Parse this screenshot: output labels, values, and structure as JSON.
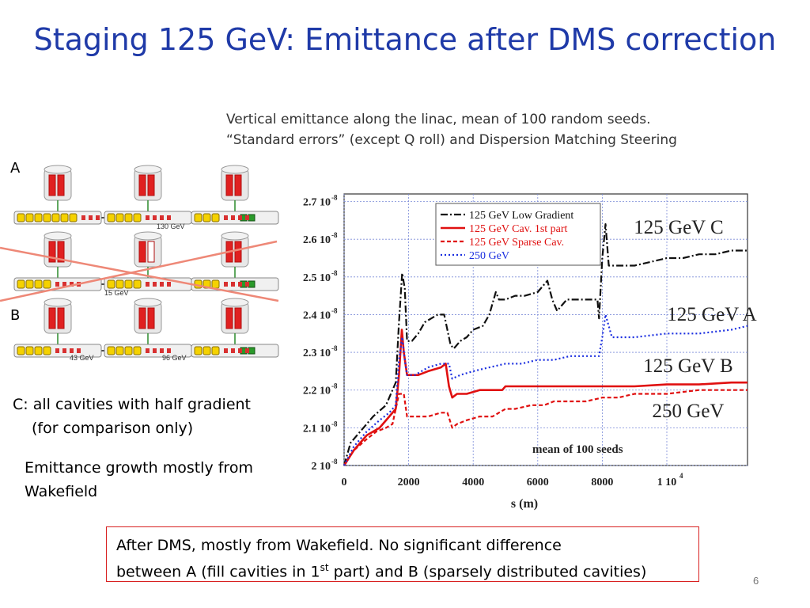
{
  "slide": {
    "title": "Staging 125 GeV: Emittance after DMS correction",
    "caption_line1": "Vertical emittance along the linac, mean of 100 random seeds.",
    "caption_line2": "“Standard errors” (except Q roll) and  Dispersion Matching Steering",
    "label_a": "A",
    "label_b": "B",
    "note_c_line1": "C: all cavities with half gradient",
    "note_c_line2": "(for comparison only)",
    "note_growth_line1": "Emittance growth mostly from",
    "note_growth_line2": "Wakefield",
    "box_text_1": "After DMS, mostly from Wakefield. No significant difference",
    "box_text_2a": "between A (fill cavities in 1",
    "box_text_sup": "st",
    "box_text_2b": " part) and B (sparsely distributed cavities)",
    "page_number": "6"
  },
  "diagram": {
    "row1_label": "130 GeV",
    "row2_label": "15 GeV",
    "row3_label_left": "43 GeV",
    "row3_label_right": "96 GeV"
  },
  "colors": {
    "title": "#1f3aa8",
    "series_low_gradient": "#111111",
    "series_cav_1st": "#e01010",
    "series_sparse": "#e01010",
    "series_250": "#1a2ee0",
    "cross": "#ee8877"
  },
  "chart_data": {
    "type": "line",
    "xlabel": "s (m)",
    "ylabel": "",
    "xlim": [
      0,
      12500
    ],
    "ylim": [
      2.0,
      2.72
    ],
    "xticks": [
      0,
      2000,
      4000,
      6000,
      8000,
      10000
    ],
    "xtick_labels": [
      "0",
      "2000",
      "4000",
      "6000",
      "8000",
      "1 10"
    ],
    "xtick_last_exp": "4",
    "yticks": [
      2.0,
      2.1,
      2.2,
      2.3,
      2.4,
      2.5,
      2.6,
      2.7
    ],
    "ytick_labels": [
      "2 10",
      "2.1 10",
      "2.2 10",
      "2.3 10",
      "2.4 10",
      "2.5 10",
      "2.6 10",
      "2.7 10"
    ],
    "ytick_exp": "-8",
    "grid": true,
    "legend_position": "top-left",
    "annotation": "mean of 100 seeds",
    "series": [
      {
        "name": "125 GeV Low Gradient",
        "label": "125 GeV C",
        "style": "dashdot",
        "x": [
          0,
          200,
          500,
          900,
          1300,
          1600,
          1700,
          1800,
          1880,
          1950,
          2100,
          2300,
          2500,
          2700,
          2900,
          3100,
          3300,
          3400,
          3600,
          3800,
          4000,
          4300,
          4500,
          4700,
          4800,
          5000,
          5300,
          5600,
          6000,
          6300,
          6450,
          6600,
          6900,
          7200,
          7500,
          7850,
          7900,
          8000,
          8100,
          8200,
          8500,
          9000,
          9500,
          10000,
          10500,
          11000,
          11500,
          12000,
          12500
        ],
        "y": [
          2.0,
          2.06,
          2.09,
          2.13,
          2.16,
          2.22,
          2.38,
          2.51,
          2.47,
          2.33,
          2.33,
          2.35,
          2.38,
          2.39,
          2.4,
          2.4,
          2.32,
          2.31,
          2.33,
          2.34,
          2.36,
          2.37,
          2.4,
          2.46,
          2.44,
          2.44,
          2.45,
          2.45,
          2.46,
          2.49,
          2.44,
          2.41,
          2.44,
          2.44,
          2.44,
          2.44,
          2.39,
          2.55,
          2.64,
          2.53,
          2.53,
          2.53,
          2.54,
          2.55,
          2.55,
          2.56,
          2.56,
          2.57,
          2.57
        ]
      },
      {
        "name": "125 GeV Cav. 1st part",
        "label": "125 GeV A",
        "style": "solid",
        "x": [
          0,
          300,
          700,
          1100,
          1400,
          1600,
          1700,
          1790,
          1850,
          1950,
          2100,
          2300,
          2600,
          3000,
          3150,
          3250,
          3350,
          3500,
          3800,
          4200,
          4700,
          4900,
          5000,
          6000,
          7000,
          8000,
          9000,
          10000,
          11000,
          12000,
          12500
        ],
        "y": [
          2.0,
          2.04,
          2.08,
          2.1,
          2.13,
          2.15,
          2.24,
          2.36,
          2.3,
          2.24,
          2.24,
          2.24,
          2.25,
          2.26,
          2.27,
          2.21,
          2.18,
          2.19,
          2.19,
          2.2,
          2.2,
          2.2,
          2.21,
          2.21,
          2.21,
          2.21,
          2.21,
          2.215,
          2.215,
          2.22,
          2.22
        ]
      },
      {
        "name": "125 GeV Sparse Cav.",
        "label": "125 GeV B",
        "style": "dashed",
        "x": [
          0,
          300,
          700,
          1000,
          1300,
          1500,
          1700,
          1850,
          1950,
          2200,
          2600,
          3000,
          3200,
          3350,
          3500,
          3800,
          4200,
          4600,
          5000,
          5300,
          5800,
          6200,
          6500,
          7000,
          7500,
          8000,
          8500,
          9000,
          9500,
          10000,
          11000,
          12000,
          12500
        ],
        "y": [
          2.0,
          2.04,
          2.07,
          2.09,
          2.1,
          2.11,
          2.19,
          2.19,
          2.13,
          2.13,
          2.13,
          2.14,
          2.14,
          2.1,
          2.11,
          2.12,
          2.13,
          2.13,
          2.15,
          2.15,
          2.16,
          2.16,
          2.17,
          2.17,
          2.17,
          2.18,
          2.18,
          2.19,
          2.19,
          2.19,
          2.2,
          2.2,
          2.2
        ]
      },
      {
        "name": "250 GeV",
        "label": "250 GeV",
        "style": "dotted",
        "x": [
          0,
          300,
          700,
          1100,
          1400,
          1600,
          1700,
          1800,
          1880,
          1950,
          2200,
          2600,
          3000,
          3250,
          3350,
          3600,
          4000,
          4500,
          5000,
          5500,
          6000,
          6500,
          7000,
          7500,
          7900,
          8000,
          8100,
          8300,
          9000,
          10000,
          11000,
          12000,
          12500
        ],
        "y": [
          2.0,
          2.05,
          2.09,
          2.12,
          2.14,
          2.16,
          2.28,
          2.34,
          2.28,
          2.24,
          2.24,
          2.26,
          2.27,
          2.27,
          2.23,
          2.24,
          2.25,
          2.26,
          2.27,
          2.27,
          2.28,
          2.28,
          2.29,
          2.29,
          2.29,
          2.34,
          2.4,
          2.34,
          2.34,
          2.35,
          2.35,
          2.36,
          2.37
        ]
      }
    ]
  }
}
